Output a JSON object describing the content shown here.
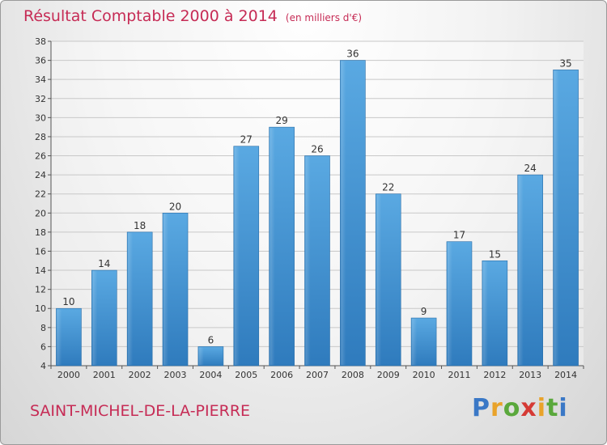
{
  "title": "Résultat Comptable 2000 à 2014",
  "unit": "(en milliers d'€)",
  "commune": "SAINT-MICHEL-DE-LA-PIERRE",
  "logo": {
    "text": "Proxiti",
    "letters": [
      "P",
      "r",
      "o",
      "x",
      "i",
      "t",
      "i"
    ],
    "colors": [
      "#3a78c6",
      "#e9a32a",
      "#5aa83c",
      "#d53a35",
      "#e9a32a",
      "#5aa83c",
      "#3a78c6"
    ]
  },
  "chart_data": {
    "type": "bar",
    "categories": [
      "2000",
      "2001",
      "2002",
      "2003",
      "2004",
      "2005",
      "2006",
      "2007",
      "2008",
      "2009",
      "2010",
      "2011",
      "2012",
      "2013",
      "2014"
    ],
    "values": [
      10,
      14,
      18,
      20,
      6,
      27,
      29,
      26,
      36,
      22,
      9,
      17,
      15,
      24,
      35
    ],
    "ylim": [
      4,
      38
    ],
    "yticks": [
      4,
      6,
      8,
      10,
      12,
      14,
      16,
      18,
      20,
      22,
      24,
      26,
      28,
      30,
      32,
      34,
      36,
      38
    ],
    "grid": true,
    "title": "Résultat Comptable 2000 à 2014",
    "xlabel": "",
    "ylabel": "",
    "bar_color": "#4f9fd9"
  }
}
